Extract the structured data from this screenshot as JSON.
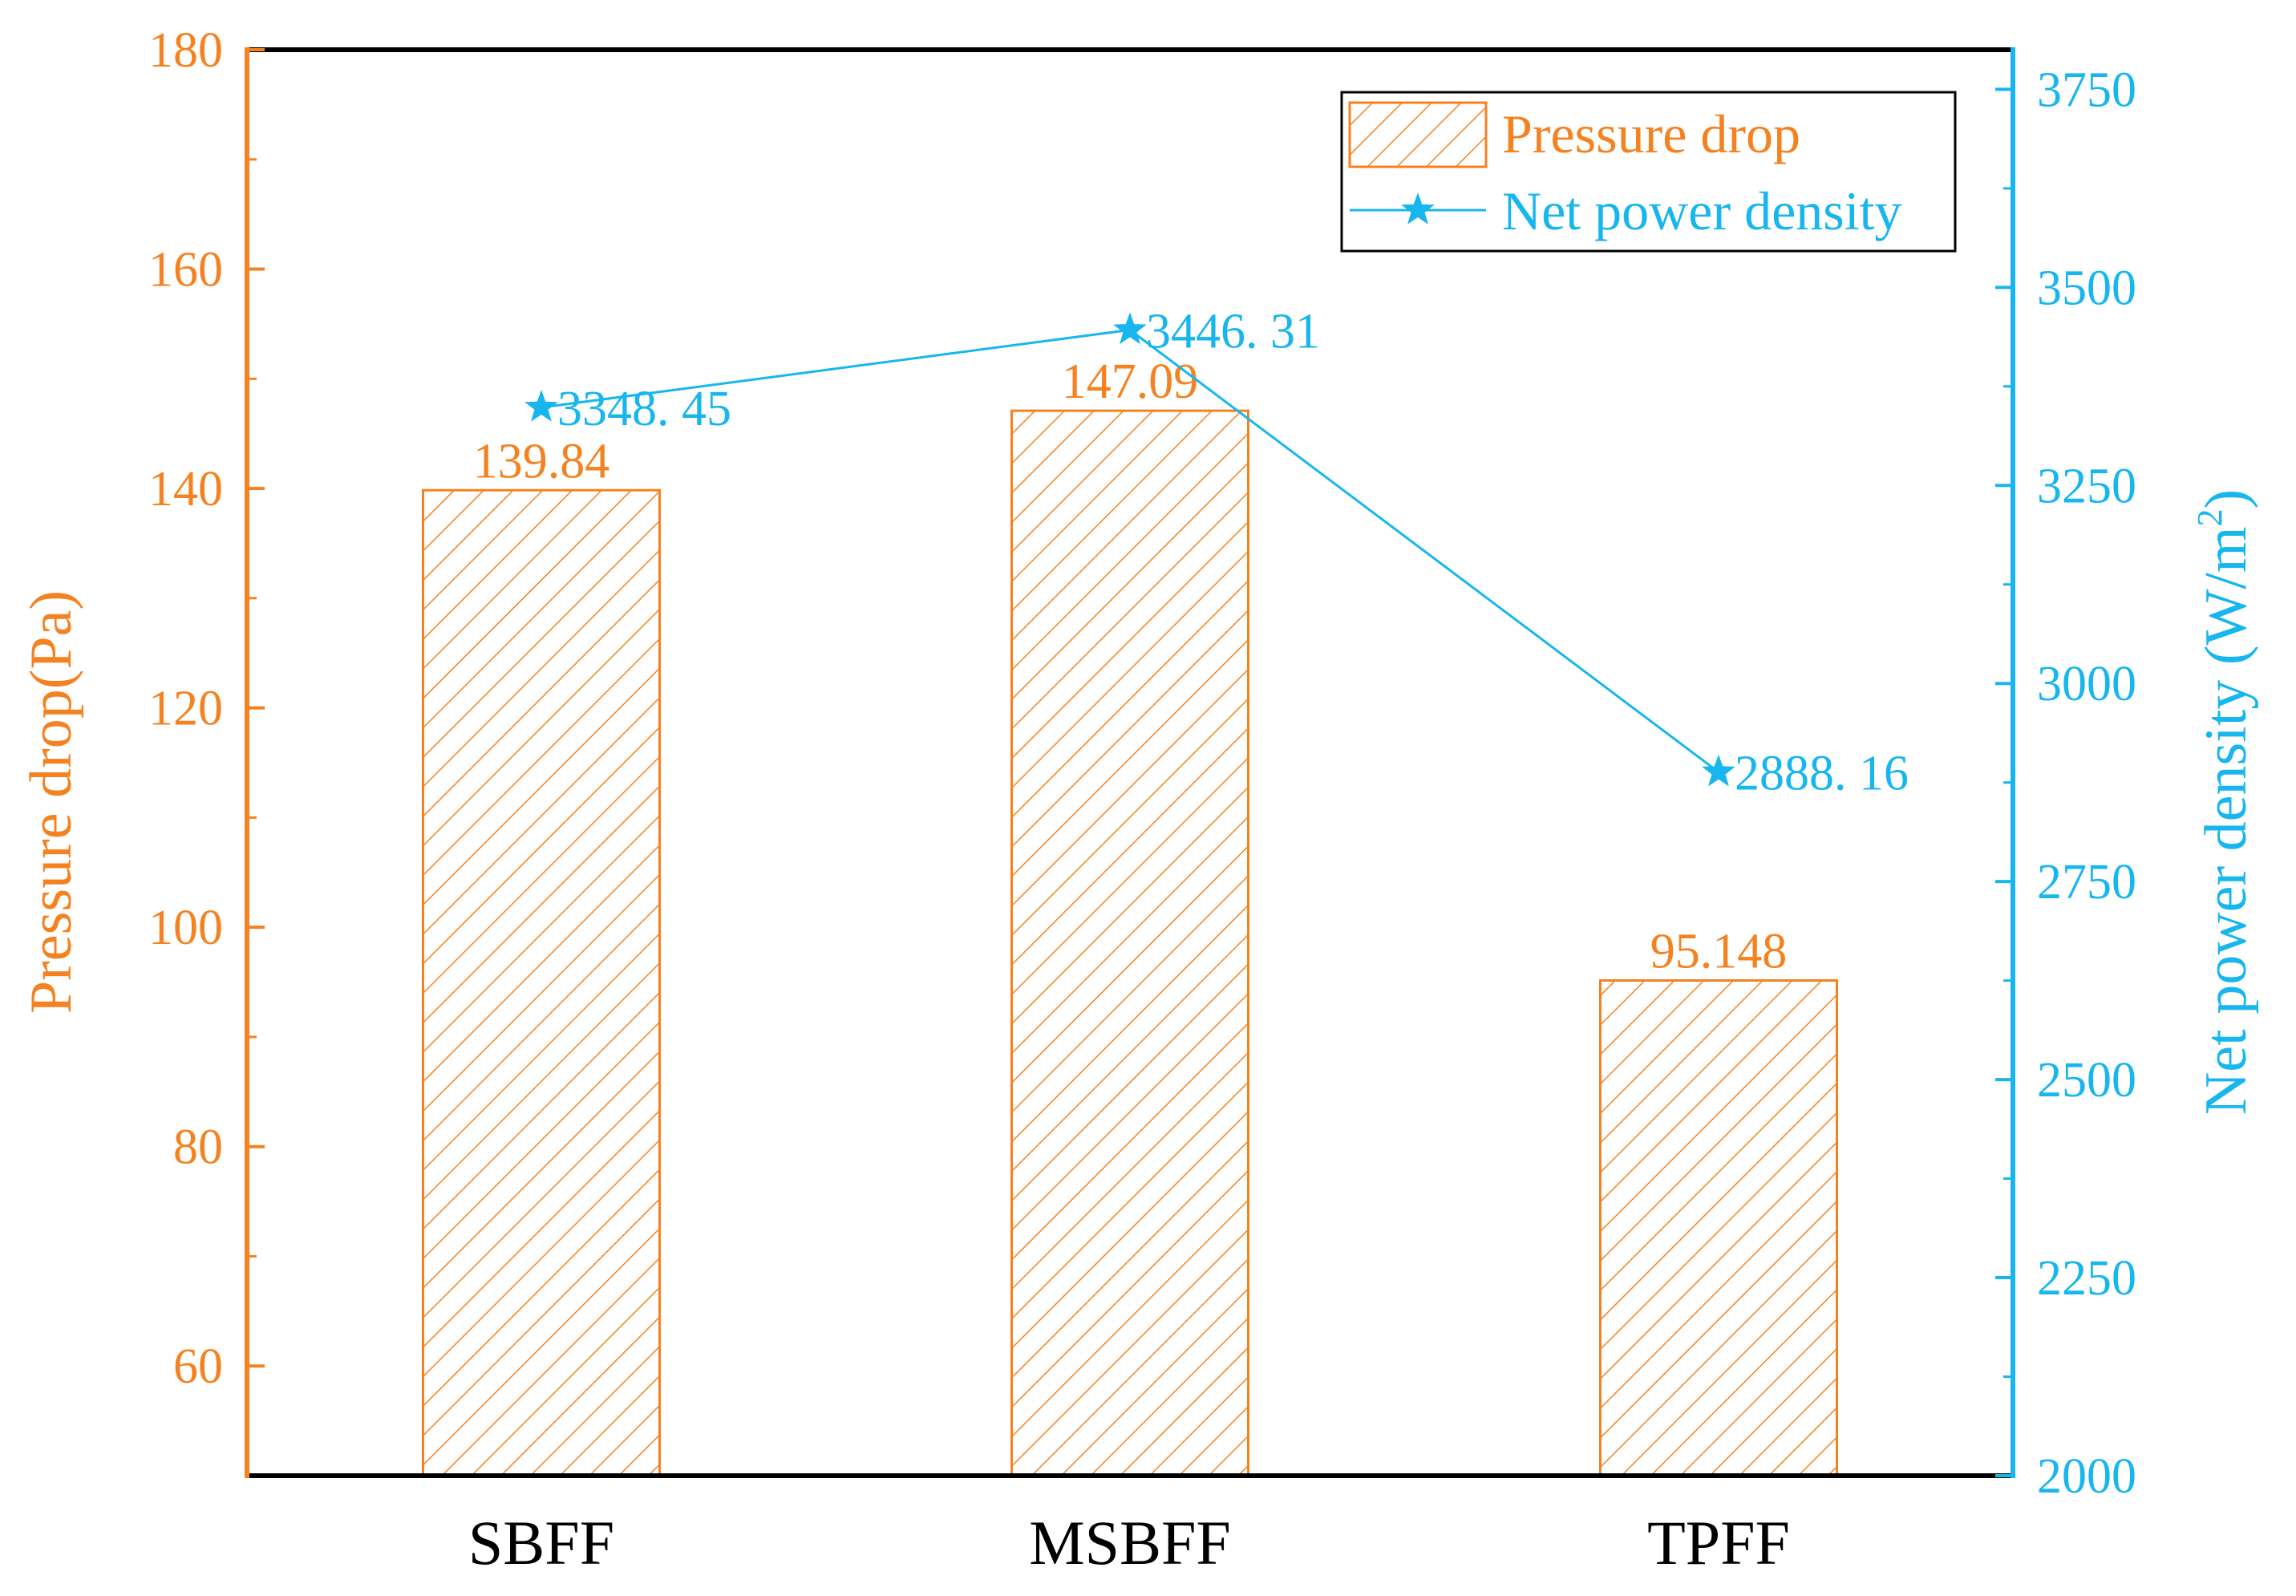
{
  "colors": {
    "left_axis": "#F58220",
    "right_axis": "#18B6EE",
    "frame": "#000000",
    "background": "#ffffff"
  },
  "chart_data": {
    "type": "bar",
    "categories": [
      "SBFF",
      "MSBFF",
      "TPFF"
    ],
    "series": [
      {
        "name": "Pressure drop",
        "kind": "bar",
        "axis": "left",
        "pattern": "diagonal-hatch",
        "values": [
          139.84,
          147.09,
          95.148
        ],
        "labels": [
          "139.84",
          "147.09",
          "95.148"
        ]
      },
      {
        "name": "Net power density",
        "kind": "line",
        "axis": "right",
        "marker": "star",
        "values": [
          3348.45,
          3446.31,
          2888.16
        ],
        "labels": [
          "3348. 45",
          "3446. 31",
          "2888. 16"
        ]
      }
    ],
    "left_axis": {
      "label": "Pressure drop(Pa)",
      "range": [
        50,
        180
      ],
      "ticks": [
        60,
        80,
        100,
        120,
        140,
        160,
        180
      ],
      "tick_labels": [
        "60",
        "80",
        "100",
        "120",
        "140",
        "160",
        "180"
      ]
    },
    "right_axis": {
      "label_main": "Net power density (W/m",
      "label_sup": "2",
      "label_tail": ")",
      "range": [
        2000,
        3800
      ],
      "ticks": [
        2000,
        2250,
        2500,
        2750,
        3000,
        3250,
        3500,
        3750
      ],
      "tick_labels": [
        "2000",
        "2250",
        "2500",
        "2750",
        "3000",
        "3250",
        "3500",
        "3750"
      ]
    },
    "legend": {
      "position": "top-right",
      "entries": [
        "Pressure drop",
        "Net power density"
      ]
    },
    "grid": false
  }
}
